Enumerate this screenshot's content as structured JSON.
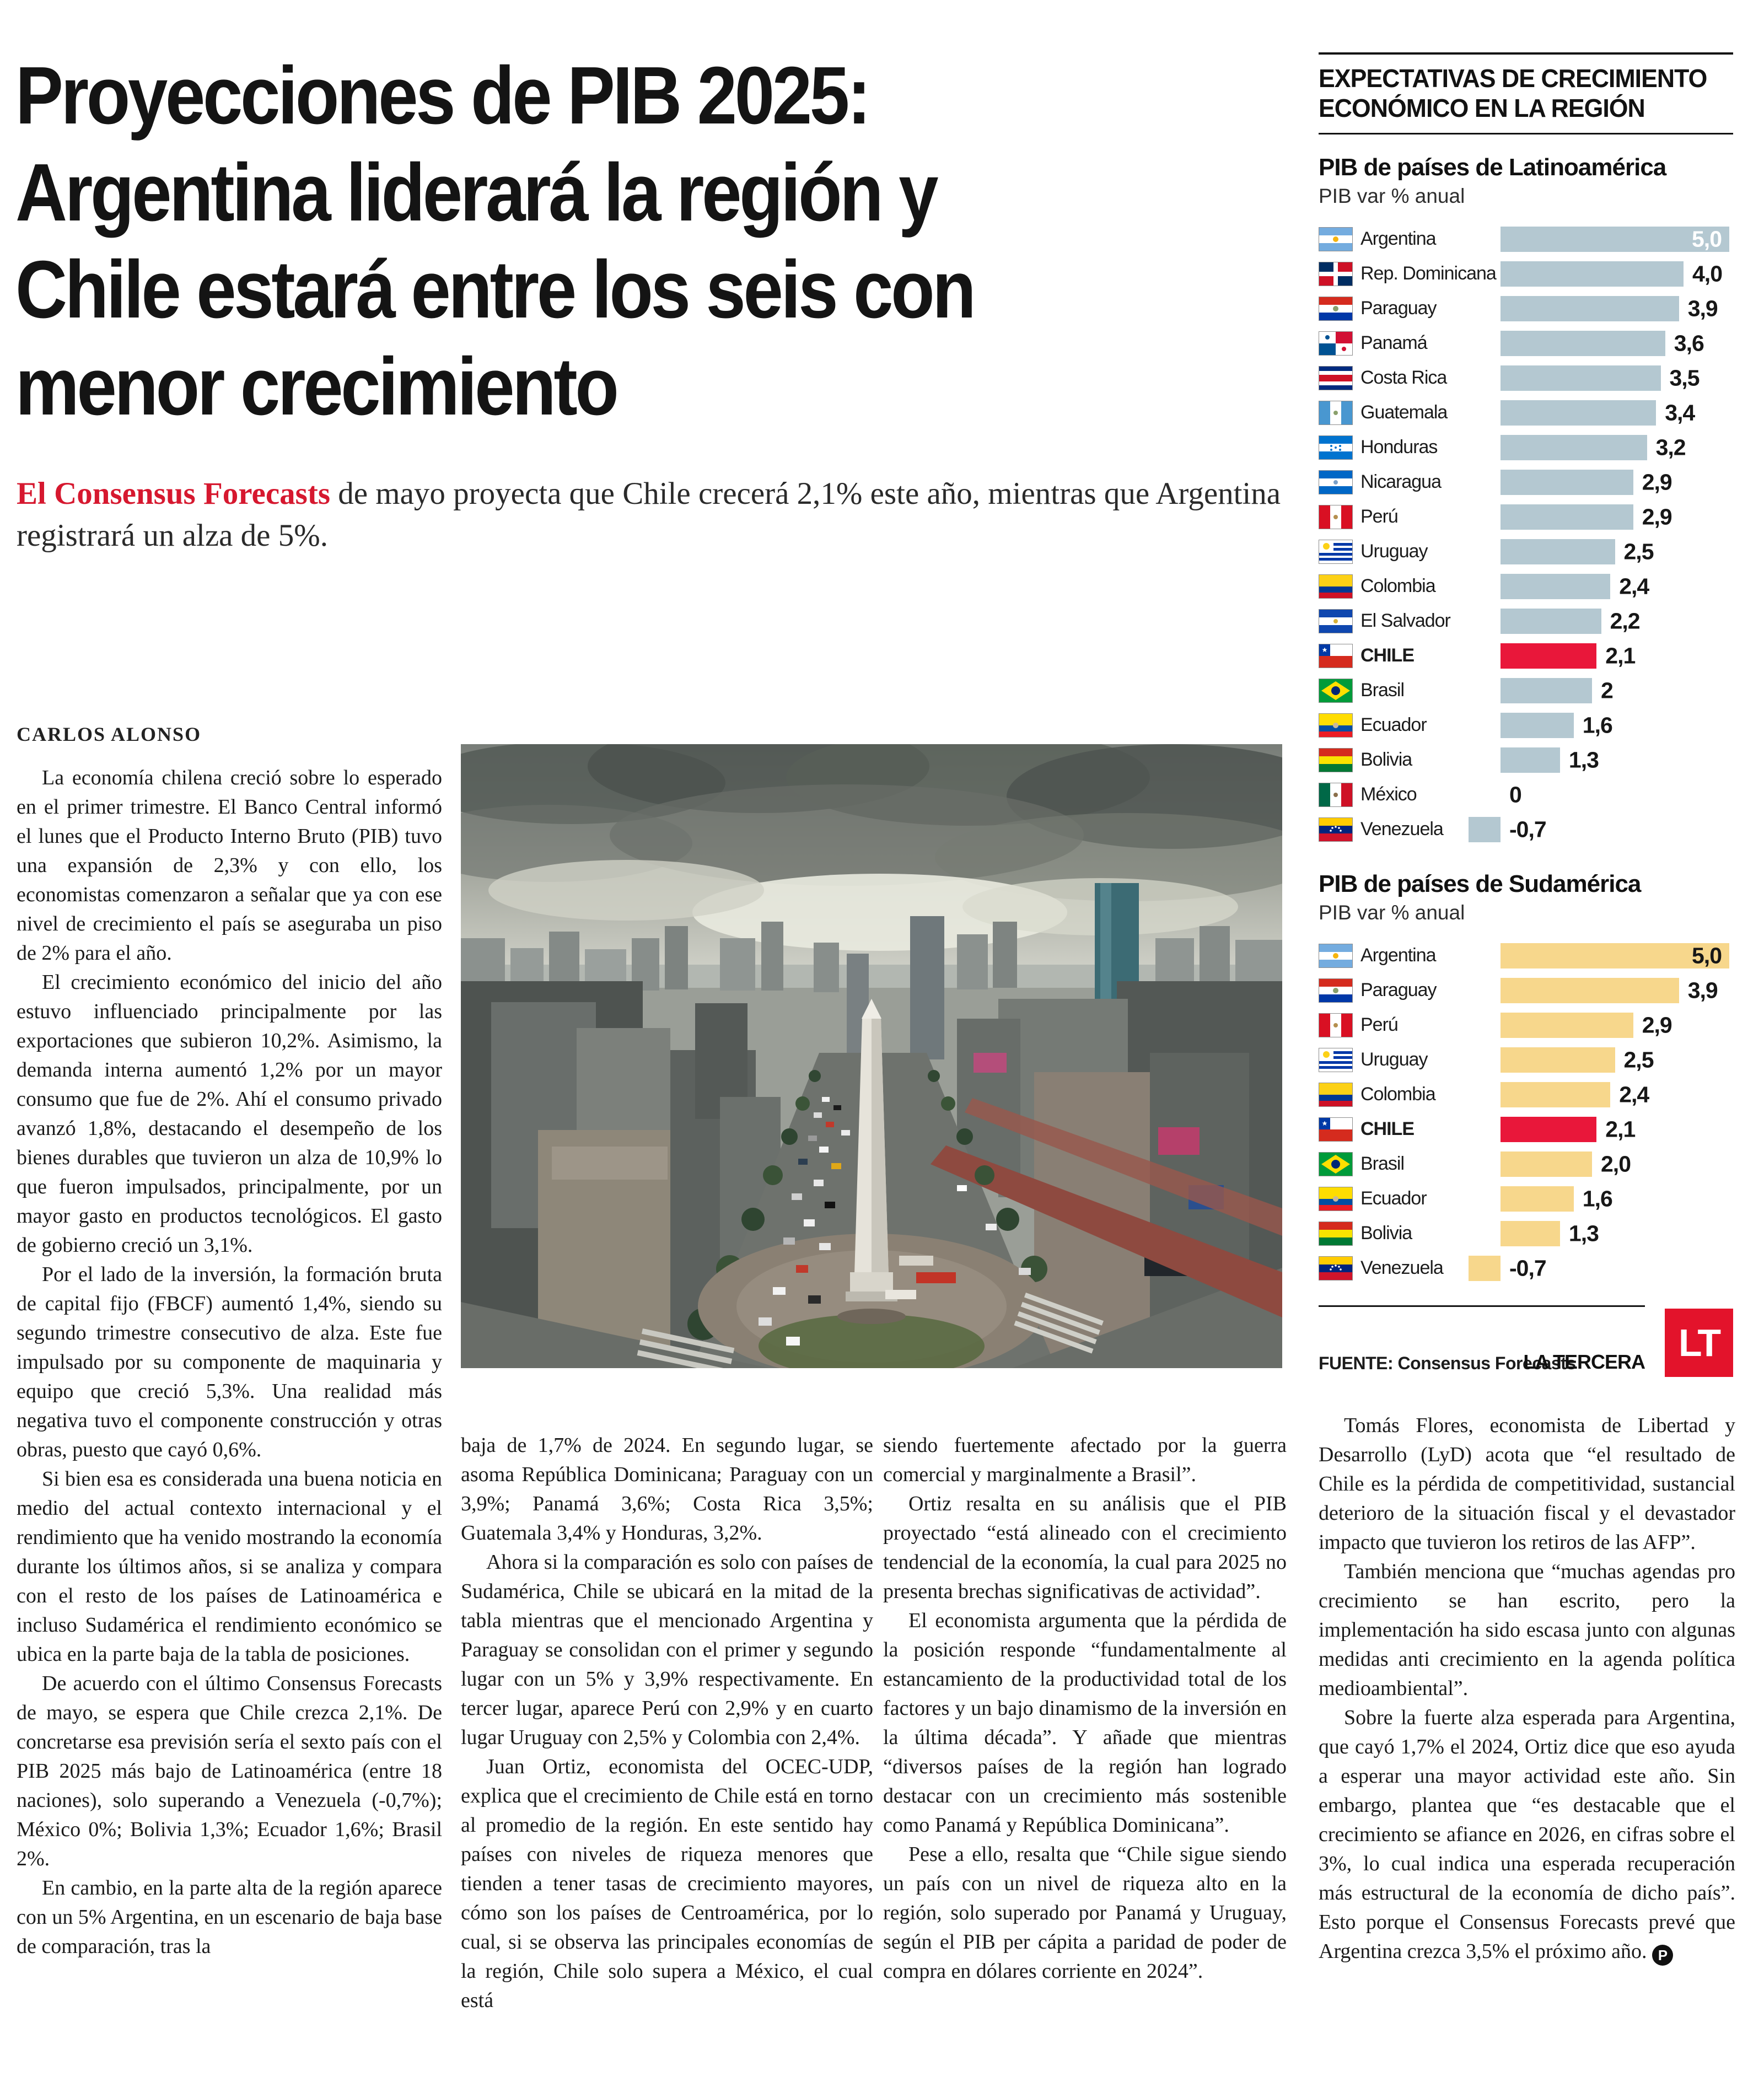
{
  "article": {
    "headline_lines": [
      "Proyecciones de PIB 2025:",
      "Argentina liderará la región y",
      "Chile estará entre los seis con",
      "menor crecimiento"
    ],
    "lede_highlight": "El Consensus Forecasts",
    "lede_rest": " de mayo proyecta que Chile crecerá 2,1% este año, mientras que Argentina registrará un alza de 5%.",
    "byline": "CARLOS ALONSO",
    "col1_paragraphs": [
      "La economía chilena creció sobre lo esperado en el primer trimestre. El Banco Central informó el lunes que el Producto Interno Bruto (PIB) tuvo una expansión de 2,3% y con ello, los economistas comenzaron a señalar que ya con ese nivel de crecimiento el país se aseguraba un piso de 2% para el año.",
      "El crecimiento económico del inicio del año estuvo influenciado principalmente por las exportaciones que subieron 10,2%. Asimismo, la demanda interna aumentó 1,2% por un mayor consumo que fue de 2%. Ahí el consumo privado avanzó 1,8%, destacando el desempeño de los bienes durables que tuvieron un alza de 10,9% lo que fueron impulsados, principalmente, por un mayor gasto en productos tecnológicos. El gasto de gobierno creció un 3,1%.",
      "Por el lado de la inversión, la formación bruta de capital fijo (FBCF) aumentó 1,4%, siendo su segundo trimestre consecutivo de alza. Este fue impulsado por su componente de maquinaria y equipo que creció 5,3%. Una realidad más negativa tuvo el componente construcción y otras obras, puesto que cayó 0,6%.",
      "Si bien esa es considerada una buena noticia en medio del actual contexto internacional y el rendimiento que ha venido mostrando la economía durante los últimos años, si se analiza y compara con el resto de los países de Latinoamérica e incluso Sudamérica el rendimiento económico se ubica en la parte baja de la tabla de posiciones.",
      "De acuerdo con el último Consensus Forecasts de mayo, se espera que Chile crezca 2,1%. De concretarse esa previsión sería el sexto país con el PIB 2025 más bajo de Latinoamérica (entre 18 naciones), solo superando a Venezuela (-0,7%); México 0%; Bolivia 1,3%; Ecuador 1,6%; Brasil 2%.",
      "En cambio, en la parte alta de la región aparece con un 5% Argentina, en un escenario de baja base de comparación, tras la"
    ],
    "col2_paragraphs": [
      "baja de 1,7% de 2024. En segundo lugar, se asoma República Dominicana; Paraguay con un 3,9%; Panamá 3,6%; Costa Rica 3,5%; Guatemala 3,4% y Honduras, 3,2%.",
      "Ahora si la comparación es solo con países de Sudamérica, Chile se ubicará en la mitad de la tabla mientras que el mencionado Argentina y Paraguay se consolidan con el primer y segundo lugar con un 5% y 3,9% respectivamente. En tercer lugar, aparece Perú con 2,9% y en cuarto lugar Uruguay con 2,5% y Colombia con 2,4%.",
      "Juan Ortiz, economista del OCEC-UDP, explica que el crecimiento de Chile está en torno al promedio de la región. En este sentido hay países con niveles de riqueza menores que tienden a tener tasas de crecimiento mayores, cómo son los países de Centroamérica, por lo cual, si se observa las principales economías de la región, Chile solo supera a México, el cual está"
    ],
    "col3_paragraphs": [
      "siendo fuertemente afectado por la guerra comercial y marginalmente a Brasil”.",
      "Ortiz resalta en su análisis que el PIB proyectado “está alineado con el crecimiento tendencial de la economía, la cual para 2025 no presenta brechas significativas de actividad”.",
      "El economista argumenta que la pérdida de la posición responde “fundamentalmente al estancamiento de la productividad total de los factores y un bajo dinamismo de la inversión en la última década”. Y añade que mientras “diversos países de la región han logrado destacar con un crecimiento más sostenible como Panamá y República Dominicana”.",
      "Pese a ello, resalta que “Chile sigue siendo un país con un nivel de riqueza alto en la región, solo superado por Panamá y Uruguay, según el PIB per cápita a paridad de poder de compra en dólares corriente en 2024”."
    ],
    "col4_paragraphs": [
      "Tomás Flores, economista de Libertad y Desarrollo (LyD) acota que “el resultado de Chile es la pérdida de competitividad, sustancial deterioro de la situación fiscal y el devastador impacto que tuvieron los retiros de las AFP”.",
      "También menciona que “muchas agendas pro crecimiento se han escrito, pero la implementación ha sido escasa junto con algunas medidas anti crecimiento en la agenda política medioambiental”.",
      "Sobre la fuerte alza esperada para Argentina, que cayó 1,7% el 2024, Ortiz dice que eso ayuda a esperar una mayor actividad este año. Sin embargo, plantea que “es destacable que el crecimiento se afiance en 2026, en cifras sobre el 3%, lo cual indica una esperada recuperación más estructural de la economía de dicho país”. Esto porque el Consensus Forecasts prevé que Argentina crezca 3,5% el próximo año."
    ],
    "end_mark": "P"
  },
  "infographic": {
    "kicker_lines": [
      "EXPECTATIVAS DE CRECIMIENTO",
      "ECONÓMICO EN LA REGIÓN"
    ],
    "source": "FUENTE: Consensus Forecasts",
    "brand": "LA TERCERA",
    "logo_text": "LT",
    "colors": {
      "bar_blue": "#b4c8d1",
      "bar_yellow": "#f7d78c",
      "highlight_red": "#e9173a",
      "logo_red": "#e3132b",
      "accent_red": "#d6182f"
    }
  },
  "chart_data": [
    {
      "type": "bar",
      "orientation": "horizontal",
      "title": "PIB de países de Latinoamérica",
      "subtitle": "PIB var % anual",
      "ylabel": "PIB var % anual",
      "xlim": [
        -0.7,
        5.0
      ],
      "bar_color": "#b4c8d1",
      "highlight_color": "#e9173a",
      "rows": [
        {
          "country": "Argentina",
          "flag": "argentina",
          "value": 5.0,
          "label": "5,0",
          "inside": true,
          "white": true
        },
        {
          "country": "Rep. Dominicana",
          "flag": "dominicana",
          "value": 4.0,
          "label": "4,0"
        },
        {
          "country": "Paraguay",
          "flag": "paraguay",
          "value": 3.9,
          "label": "3,9"
        },
        {
          "country": "Panamá",
          "flag": "panama",
          "value": 3.6,
          "label": "3,6"
        },
        {
          "country": "Costa Rica",
          "flag": "costarica",
          "value": 3.5,
          "label": "3,5"
        },
        {
          "country": "Guatemala",
          "flag": "guatemala",
          "value": 3.4,
          "label": "3,4"
        },
        {
          "country": "Honduras",
          "flag": "honduras",
          "value": 3.2,
          "label": "3,2"
        },
        {
          "country": "Nicaragua",
          "flag": "nicaragua",
          "value": 2.9,
          "label": "2,9"
        },
        {
          "country": "Perú",
          "flag": "peru",
          "value": 2.9,
          "label": "2,9"
        },
        {
          "country": "Uruguay",
          "flag": "uruguay",
          "value": 2.5,
          "label": "2,5"
        },
        {
          "country": "Colombia",
          "flag": "colombia",
          "value": 2.4,
          "label": "2,4"
        },
        {
          "country": "El Salvador",
          "flag": "elsalvador",
          "value": 2.2,
          "label": "2,2"
        },
        {
          "country": "CHILE",
          "flag": "chile",
          "value": 2.1,
          "label": "2,1",
          "highlight": true
        },
        {
          "country": "Brasil",
          "flag": "brasil",
          "value": 2.0,
          "label": "2"
        },
        {
          "country": "Ecuador",
          "flag": "ecuador",
          "value": 1.6,
          "label": "1,6"
        },
        {
          "country": "Bolivia",
          "flag": "bolivia",
          "value": 1.3,
          "label": "1,3"
        },
        {
          "country": "México",
          "flag": "mexico",
          "value": 0,
          "label": "0"
        },
        {
          "country": "Venezuela",
          "flag": "venezuela",
          "value": -0.7,
          "label": "-0,7"
        }
      ]
    },
    {
      "type": "bar",
      "orientation": "horizontal",
      "title": "PIB de países de Sudamérica",
      "subtitle": "PIB var % anual",
      "ylabel": "PIB var % anual",
      "xlim": [
        -0.7,
        5.0
      ],
      "bar_color": "#f7d78c",
      "highlight_color": "#e9173a",
      "rows": [
        {
          "country": "Argentina",
          "flag": "argentina",
          "value": 5.0,
          "label": "5,0",
          "inside": true
        },
        {
          "country": "Paraguay",
          "flag": "paraguay",
          "value": 3.9,
          "label": "3,9"
        },
        {
          "country": "Perú",
          "flag": "peru",
          "value": 2.9,
          "label": "2,9"
        },
        {
          "country": "Uruguay",
          "flag": "uruguay",
          "value": 2.5,
          "label": "2,5"
        },
        {
          "country": "Colombia",
          "flag": "colombia",
          "value": 2.4,
          "label": "2,4"
        },
        {
          "country": "CHILE",
          "flag": "chile",
          "value": 2.1,
          "label": "2,1",
          "highlight": true
        },
        {
          "country": "Brasil",
          "flag": "brasil",
          "value": 2.0,
          "label": "2,0"
        },
        {
          "country": "Ecuador",
          "flag": "ecuador",
          "value": 1.6,
          "label": "1,6"
        },
        {
          "country": "Bolivia",
          "flag": "bolivia",
          "value": 1.3,
          "label": "1,3"
        },
        {
          "country": "Venezuela",
          "flag": "venezuela",
          "value": -0.7,
          "label": "-0,7"
        }
      ]
    }
  ]
}
